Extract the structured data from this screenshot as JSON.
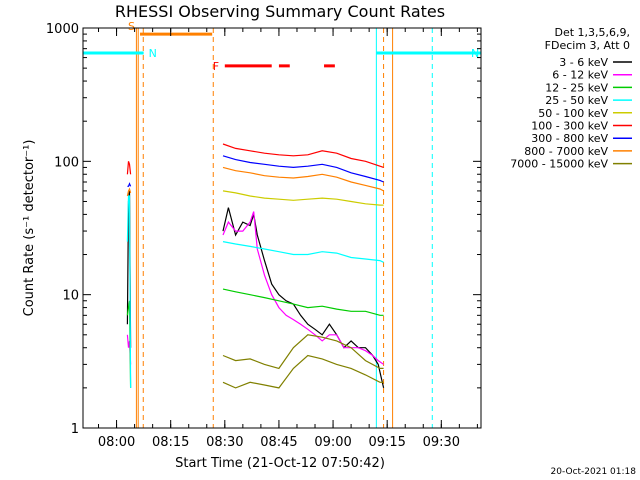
{
  "chart_data": {
    "type": "line",
    "title": "RHESSI Observing Summary Count Rates",
    "xlabel": "Start Time (21-Oct-12 07:50:42)",
    "ylabel": "Count Rate (s⁻¹ detector⁻¹)",
    "y_scale": "log",
    "ylim": [
      1,
      1000
    ],
    "xlim_minutes": [
      -9.3,
      101
    ],
    "x_tick_labels": [
      "08:00",
      "08:15",
      "08:30",
      "08:45",
      "09:00",
      "09:15",
      "09:30"
    ],
    "x_tick_minutes": [
      0,
      15,
      30,
      45,
      60,
      75,
      90
    ],
    "y_tick_labels": [
      "1",
      "10",
      "100",
      "1000"
    ],
    "y_tick_values": [
      1,
      10,
      100,
      1000
    ],
    "legend": {
      "header": [
        "Det 1,3,5,6,9,",
        "FDecim 3, Att 0"
      ],
      "position": "right"
    },
    "timestamp": "20-Oct-2021 01:18",
    "flags": [
      {
        "label": "S",
        "color": "#ff8000",
        "start_min": 6.5,
        "end_min": 26.5,
        "level": 900
      },
      {
        "label": "N",
        "color": "#00ffff",
        "start_min": -9.3,
        "end_min": 7.5,
        "level": 650
      },
      {
        "label": "N",
        "color": "#00ffff",
        "start_min": 72,
        "end_min": 101,
        "level": 650
      },
      {
        "label": "F",
        "color": "#ff0000",
        "segments": [
          [
            30,
            43
          ],
          [
            45,
            48
          ],
          [
            57.5,
            60.5
          ]
        ],
        "level": 520
      }
    ],
    "markers": [
      {
        "kind": "solid",
        "color": "#ff8000",
        "minute": 5.5
      },
      {
        "kind": "solid",
        "color": "#ff8000",
        "minute": 6.0
      },
      {
        "kind": "dashed",
        "color": "#ff8000",
        "minute": 7.4
      },
      {
        "kind": "dashed",
        "color": "#ff8000",
        "minute": 26.8
      },
      {
        "kind": "solid",
        "color": "#00ffff",
        "minute": -9.3
      },
      {
        "kind": "solid",
        "color": "#00ffff",
        "minute": 72.0
      },
      {
        "kind": "solid",
        "color": "#ff8000",
        "minute": 76.5
      },
      {
        "kind": "dashed",
        "color": "#00ffff",
        "minute": 87.5
      },
      {
        "kind": "dashed",
        "color": "#ff8000",
        "minute": 74.0
      }
    ],
    "series": [
      {
        "name": "3 - 6 keV",
        "color": "#000000",
        "segments": [
          {
            "x": [
              3.0,
              3.3,
              3.6,
              3.9
            ],
            "y": [
              6,
              50,
              60,
              4
            ]
          },
          {
            "x": [
              29.5,
              31,
              33,
              35,
              37,
              38,
              39,
              41,
              43,
              45,
              47,
              49,
              51,
              53,
              55,
              57,
              59,
              61,
              63,
              65,
              67,
              69,
              71,
              72.5,
              74
            ],
            "y": [
              30,
              45,
              28,
              35,
              33,
              40,
              28,
              18,
              12,
              10,
              9,
              8.5,
              7,
              6,
              5.5,
              5,
              6,
              5,
              4,
              4.5,
              4,
              4,
              3.5,
              3,
              2
            ]
          }
        ]
      },
      {
        "name": "6 - 12 keV",
        "color": "#ff00ff",
        "segments": [
          {
            "x": [
              3.0,
              3.3,
              3.6,
              3.9
            ],
            "y": [
              5,
              4,
              4.5,
              3
            ]
          },
          {
            "x": [
              29.5,
              31,
              33,
              35,
              37,
              38,
              39,
              41,
              43,
              45,
              47,
              49,
              51,
              53,
              55,
              57,
              59,
              61,
              63,
              65,
              67,
              69,
              71,
              72.5,
              74
            ],
            "y": [
              28,
              35,
              30,
              30,
              35,
              42,
              22,
              14,
              10,
              8,
              7,
              6.5,
              6,
              5.5,
              5,
              4.5,
              5,
              5,
              4,
              4,
              4,
              3.8,
              3.5,
              3.2,
              3
            ]
          }
        ]
      },
      {
        "name": "12 - 25 keV",
        "color": "#00cc00",
        "segments": [
          {
            "x": [
              3.0,
              3.3,
              3.6,
              3.9
            ],
            "y": [
              7,
              8,
              9,
              2
            ]
          },
          {
            "x": [
              29.5,
              33,
              37,
              41,
              45,
              49,
              53,
              57,
              61,
              65,
              69,
              73,
              74
            ],
            "y": [
              11,
              10.5,
              10,
              9.5,
              9,
              8.5,
              8,
              8.2,
              7.8,
              7.5,
              7.5,
              7,
              7
            ]
          }
        ]
      },
      {
        "name": "25 - 50 keV",
        "color": "#00ffff",
        "segments": [
          {
            "x": [
              3.0,
              3.3,
              3.6,
              3.9
            ],
            "y": [
              25,
              55,
              55,
              2
            ]
          },
          {
            "x": [
              29.5,
              33,
              37,
              41,
              45,
              49,
              53,
              57,
              61,
              65,
              69,
              73,
              74
            ],
            "y": [
              25,
              24,
              23,
              22,
              21,
              20,
              20,
              21,
              20.5,
              19,
              18.5,
              18,
              17.5
            ]
          }
        ]
      },
      {
        "name": "50 - 100 keV",
        "color": "#cccc00",
        "segments": [
          {
            "x": [
              29.5,
              33,
              37,
              41,
              45,
              49,
              53,
              57,
              61,
              65,
              69,
              73,
              74
            ],
            "y": [
              60,
              58,
              55,
              53,
              52,
              51,
              52,
              53,
              52,
              50,
              48,
              47,
              47
            ]
          }
        ]
      },
      {
        "name": "100 - 300 keV",
        "color": "#ff0000",
        "segments": [
          {
            "x": [
              3.0,
              3.3,
              3.6,
              3.9
            ],
            "y": [
              80,
              100,
              95,
              80
            ]
          },
          {
            "x": [
              29.5,
              33,
              37,
              41,
              45,
              49,
              53,
              57,
              61,
              65,
              69,
              73,
              74
            ],
            "y": [
              135,
              125,
              120,
              115,
              112,
              110,
              112,
              120,
              115,
              105,
              100,
              92,
              90
            ]
          }
        ]
      },
      {
        "name": "300 - 800 keV",
        "color": "#0000ff",
        "segments": [
          {
            "x": [
              3.0,
              3.3,
              3.6,
              3.9
            ],
            "y": [
              65,
              65,
              68,
              65
            ]
          },
          {
            "x": [
              29.5,
              33,
              37,
              41,
              45,
              49,
              53,
              57,
              61,
              65,
              69,
              73,
              74
            ],
            "y": [
              110,
              103,
              98,
              95,
              92,
              90,
              92,
              95,
              90,
              82,
              77,
              72,
              70
            ]
          }
        ]
      },
      {
        "name": "800 - 7000 keV",
        "color": "#ff8000",
        "segments": [
          {
            "x": [
              3.0,
              3.3,
              3.6,
              3.9
            ],
            "y": [
              55,
              60,
              62,
              58
            ]
          },
          {
            "x": [
              29.5,
              33,
              37,
              41,
              45,
              49,
              53,
              57,
              61,
              65,
              69,
              73,
              74
            ],
            "y": [
              90,
              85,
              82,
              78,
              76,
              75,
              77,
              80,
              76,
              70,
              66,
              62,
              60
            ]
          }
        ]
      },
      {
        "name": "7000 - 15000 keV",
        "color": "#808000",
        "segments": [
          {
            "x": [
              29.5,
              33,
              37,
              41,
              45,
              49,
              53,
              57,
              61,
              65,
              69,
              73,
              74
            ],
            "y": [
              3.5,
              3.2,
              3.3,
              3.0,
              2.8,
              4.0,
              5.0,
              4.8,
              4.5,
              4.0,
              3.2,
              2.8,
              2.8
            ]
          },
          {
            "x": [
              29.5,
              33,
              37,
              41,
              45,
              49,
              53,
              57,
              61,
              65,
              69,
              73,
              74
            ],
            "y": [
              2.2,
              2.0,
              2.2,
              2.1,
              2.0,
              2.8,
              3.5,
              3.3,
              3.0,
              2.8,
              2.5,
              2.2,
              2.2
            ]
          }
        ]
      }
    ]
  }
}
